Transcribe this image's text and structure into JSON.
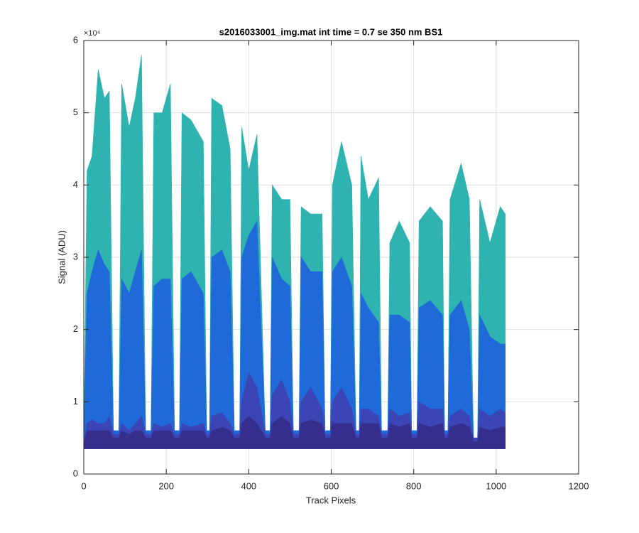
{
  "chart_data": {
    "type": "area",
    "title": "s2016033001_img.mat int time = 0.7 se  350 nm BS1",
    "xlabel": "Track Pixels",
    "ylabel": "Signal (ADU)",
    "y_exponent": "×10⁴",
    "xlim": [
      0,
      1200
    ],
    "xticks": [
      0,
      200,
      400,
      600,
      800,
      1000,
      1200
    ],
    "ylim": [
      0,
      60000
    ],
    "yticks": [
      0,
      {
        "value": 10000,
        "label": "1"
      },
      {
        "value": 20000,
        "label": "2"
      },
      {
        "value": 30000,
        "label": "3"
      },
      {
        "value": 40000,
        "label": "4"
      },
      {
        "value": 50000,
        "label": "5"
      },
      {
        "value": 60000,
        "label": "6"
      }
    ],
    "grid": true,
    "fill_base": 3500,
    "x": [
      0,
      8,
      20,
      35,
      50,
      62,
      72,
      85,
      92,
      110,
      125,
      140,
      150,
      163,
      170,
      190,
      210,
      220,
      232,
      238,
      260,
      290,
      298,
      305,
      310,
      335,
      355,
      365,
      378,
      383,
      400,
      420,
      440,
      452,
      457,
      480,
      500,
      508,
      522,
      527,
      550,
      578,
      585,
      598,
      603,
      625,
      650,
      660,
      668,
      672,
      690,
      715,
      722,
      737,
      742,
      765,
      790,
      795,
      808,
      813,
      840,
      870,
      875,
      883,
      888,
      915,
      935,
      945,
      955,
      960,
      985,
      1010,
      1022
    ],
    "series": [
      {
        "color": "#2fb3b0",
        "values": [
          5000,
          42000,
          44000,
          56000,
          52000,
          53000,
          6000,
          6000,
          54000,
          48000,
          52000,
          58000,
          6000,
          6000,
          50000,
          50000,
          54000,
          6000,
          6000,
          50000,
          49000,
          46000,
          6000,
          6000,
          52000,
          51000,
          45000,
          6000,
          6000,
          48000,
          42000,
          47000,
          6000,
          6000,
          40000,
          38000,
          38000,
          6000,
          6000,
          37000,
          36000,
          36000,
          6000,
          6000,
          40000,
          46000,
          40000,
          6000,
          6000,
          44000,
          38000,
          41000,
          6000,
          6000,
          32000,
          35000,
          32000,
          6000,
          6000,
          35000,
          37000,
          35000,
          6000,
          6000,
          38000,
          43000,
          38000,
          5000,
          5000,
          38000,
          32000,
          37000,
          36000
        ]
      },
      {
        "color": "#1f6ad8",
        "values": [
          5000,
          25000,
          28000,
          31000,
          29000,
          28000,
          6000,
          6000,
          27000,
          25000,
          28000,
          31000,
          6000,
          6000,
          26000,
          27000,
          27000,
          6000,
          6000,
          27000,
          28000,
          25000,
          6000,
          6000,
          30000,
          31000,
          28000,
          6000,
          6000,
          30000,
          33000,
          35000,
          6000,
          6000,
          30000,
          27000,
          26000,
          6000,
          6000,
          30000,
          28000,
          28000,
          6000,
          6000,
          28000,
          30000,
          26000,
          6000,
          6000,
          25000,
          23000,
          21000,
          6000,
          6000,
          22000,
          22000,
          21000,
          6000,
          6000,
          23000,
          24000,
          22000,
          6000,
          6000,
          22000,
          24000,
          20000,
          5000,
          5000,
          22000,
          19000,
          18000,
          18000
        ]
      },
      {
        "color": "#3b45b5",
        "values": [
          4500,
          7000,
          7500,
          7000,
          7000,
          8000,
          5500,
          5500,
          7000,
          6000,
          7000,
          8000,
          5500,
          5500,
          7000,
          6500,
          7000,
          5500,
          5500,
          7000,
          6500,
          7000,
          5500,
          5500,
          8000,
          8500,
          7000,
          5500,
          5500,
          10000,
          14000,
          12000,
          5500,
          5500,
          11000,
          13000,
          10000,
          5500,
          5500,
          10000,
          12000,
          9000,
          5500,
          5500,
          10000,
          12000,
          9000,
          5500,
          5500,
          9000,
          9000,
          8000,
          5500,
          5500,
          9000,
          8000,
          8500,
          5500,
          5500,
          10000,
          9000,
          9000,
          5500,
          5500,
          8000,
          9000,
          8000,
          5000,
          5000,
          9000,
          8000,
          9000,
          8500
        ]
      },
      {
        "color": "#352e8c",
        "values": [
          4000,
          6000,
          6000,
          6000,
          6000,
          6000,
          5000,
          5000,
          6000,
          5500,
          6000,
          6000,
          5000,
          5000,
          6000,
          6000,
          6000,
          5000,
          5000,
          6000,
          6000,
          6000,
          5000,
          5000,
          6000,
          6500,
          6000,
          5000,
          5000,
          7000,
          8000,
          7000,
          5000,
          5000,
          7000,
          8000,
          7000,
          5000,
          5000,
          7000,
          7500,
          7000,
          5000,
          5000,
          7000,
          7000,
          7000,
          5000,
          5000,
          7000,
          7000,
          7000,
          5000,
          5000,
          7000,
          6500,
          7000,
          5000,
          5000,
          7000,
          6500,
          7000,
          5000,
          5000,
          6500,
          7000,
          6500,
          4500,
          4500,
          6500,
          6000,
          6500,
          6500
        ]
      }
    ]
  }
}
